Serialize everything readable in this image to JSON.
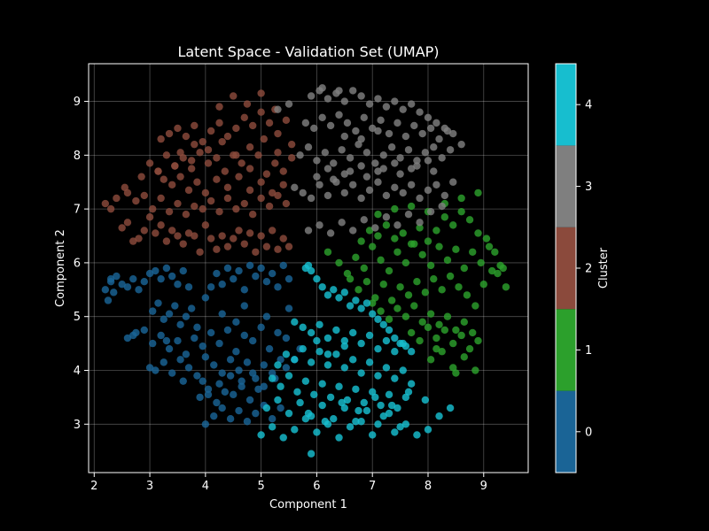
{
  "chart_data": {
    "type": "scatter",
    "title": "Latent Space - Validation Set (UMAP)",
    "xlabel": "Component 1",
    "ylabel": "Component 2",
    "xlim": [
      1.9,
      9.8
    ],
    "ylim": [
      2.1,
      9.7
    ],
    "xticks": [
      2,
      3,
      4,
      5,
      6,
      7,
      8,
      9
    ],
    "yticks": [
      3,
      4,
      5,
      6,
      7,
      8,
      9
    ],
    "grid": true,
    "background": "#000000",
    "colorbar": {
      "label": "Cluster",
      "range": [
        -0.5,
        4.5
      ],
      "ticks": [
        0,
        1,
        2,
        3,
        4
      ]
    },
    "series": [
      {
        "cluster": 0,
        "color": "#1a6496",
        "x": [
          2.2,
          2.25,
          2.3,
          2.35,
          2.3,
          2.4,
          2.5,
          2.6,
          2.7,
          2.8,
          2.9,
          3.0,
          3.1,
          3.2,
          3.3,
          3.4,
          3.5,
          3.6,
          3.7,
          3.05,
          3.15,
          3.25,
          3.35,
          3.45,
          3.55,
          3.65,
          3.75,
          3.85,
          4.0,
          4.1,
          4.2,
          4.3,
          4.4,
          4.5,
          4.6,
          4.7,
          4.8,
          4.9,
          5.0,
          5.1,
          5.2,
          5.3,
          5.4,
          5.5,
          2.6,
          2.75,
          2.9,
          3.05,
          3.2,
          3.35,
          3.5,
          3.65,
          3.8,
          3.95,
          4.1,
          4.25,
          4.4,
          4.55,
          4.7,
          4.85,
          5.0,
          5.15,
          5.3,
          5.45,
          3.1,
          3.25,
          3.4,
          3.55,
          3.7,
          3.85,
          4.0,
          4.15,
          4.3,
          4.45,
          4.6,
          4.75,
          4.9,
          5.05,
          5.2,
          5.35,
          3.9,
          4.05,
          4.2,
          4.35,
          4.5,
          4.65,
          4.8,
          4.95,
          4.0,
          4.15,
          4.3,
          4.45,
          4.6,
          4.75,
          4.9,
          5.05,
          5.2,
          5.35,
          4.05,
          4.25,
          4.45,
          4.65,
          4.85,
          5.05,
          5.25,
          5.45,
          5.6,
          5.7,
          3.95,
          4.3,
          4.7,
          5.1,
          5.5,
          3.6,
          3.0,
          2.7,
          3.3,
          4.55
        ],
        "y": [
          5.5,
          5.3,
          5.7,
          5.45,
          5.65,
          5.75,
          5.6,
          5.55,
          5.7,
          5.5,
          5.65,
          5.8,
          5.85,
          5.7,
          5.9,
          5.75,
          5.6,
          5.85,
          5.55,
          5.1,
          5.25,
          4.95,
          5.05,
          5.2,
          4.85,
          5.0,
          5.15,
          4.8,
          5.35,
          5.55,
          5.8,
          5.6,
          5.9,
          5.7,
          5.85,
          5.5,
          5.95,
          5.75,
          5.9,
          5.65,
          5.8,
          5.55,
          5.95,
          5.7,
          4.6,
          4.7,
          4.75,
          4.5,
          4.65,
          4.4,
          4.55,
          4.3,
          4.6,
          4.45,
          4.7,
          4.5,
          4.75,
          4.35,
          4.65,
          4.55,
          4.8,
          4.4,
          4.7,
          4.6,
          4.0,
          4.15,
          3.95,
          4.2,
          4.05,
          3.9,
          4.25,
          4.1,
          3.95,
          4.2,
          4.0,
          4.15,
          3.85,
          4.1,
          3.95,
          4.2,
          3.5,
          3.65,
          3.4,
          3.6,
          3.55,
          3.7,
          3.45,
          3.65,
          3.0,
          3.15,
          3.3,
          3.1,
          3.25,
          3.05,
          3.2,
          3.35,
          3.1,
          3.3,
          3.55,
          3.75,
          3.9,
          3.8,
          3.95,
          3.7,
          3.85,
          4.05,
          4.2,
          4.4,
          3.8,
          5.05,
          5.2,
          5.0,
          5.15,
          3.8,
          4.05,
          4.65,
          4.55,
          4.9
        ]
      },
      {
        "cluster": 1,
        "color": "#2ca02c",
        "x": [
          6.2,
          6.4,
          6.55,
          6.7,
          6.85,
          7.0,
          7.15,
          7.3,
          7.45,
          7.6,
          7.75,
          7.9,
          8.05,
          8.2,
          8.35,
          8.5,
          8.65,
          8.8,
          8.95,
          9.1,
          9.25,
          9.4,
          6.6,
          6.75,
          6.9,
          7.05,
          7.2,
          7.35,
          7.5,
          7.65,
          7.8,
          7.95,
          8.1,
          8.25,
          8.4,
          8.55,
          8.7,
          8.85,
          9.0,
          9.15,
          9.3,
          6.8,
          6.95,
          7.1,
          7.25,
          7.4,
          7.55,
          7.7,
          7.85,
          8.0,
          8.15,
          8.3,
          8.45,
          8.6,
          8.75,
          8.9,
          7.0,
          7.15,
          7.3,
          7.45,
          7.6,
          7.75,
          7.9,
          8.05,
          8.2,
          8.35,
          8.5,
          8.65,
          8.8,
          7.7,
          7.85,
          8.0,
          8.15,
          8.3,
          8.45,
          8.6,
          8.75,
          8.9,
          8.05,
          8.25,
          8.45,
          8.65,
          8.85,
          7.1,
          7.4,
          7.7,
          8.0,
          8.3,
          8.6,
          8.9,
          9.05,
          9.2,
          9.35,
          8.15,
          8.5
        ],
        "y": [
          6.2,
          6.0,
          5.8,
          6.1,
          5.9,
          6.3,
          6.05,
          5.85,
          6.2,
          6.0,
          6.35,
          6.15,
          5.95,
          6.3,
          6.05,
          6.25,
          5.9,
          6.2,
          6.0,
          6.3,
          5.8,
          5.55,
          5.7,
          5.5,
          5.65,
          5.35,
          5.6,
          5.3,
          5.55,
          5.4,
          5.65,
          5.45,
          5.7,
          5.5,
          5.75,
          5.55,
          5.4,
          5.2,
          5.6,
          5.85,
          5.95,
          6.4,
          6.6,
          6.5,
          6.7,
          6.45,
          6.55,
          6.35,
          6.65,
          6.4,
          6.6,
          6.85,
          6.7,
          6.95,
          6.8,
          6.55,
          5.25,
          5.1,
          4.95,
          5.15,
          5.0,
          5.2,
          4.9,
          5.05,
          4.85,
          5.0,
          4.75,
          4.9,
          4.7,
          4.7,
          4.55,
          4.8,
          4.6,
          4.75,
          4.5,
          4.65,
          4.4,
          4.55,
          4.2,
          4.35,
          4.05,
          4.25,
          4.0,
          6.9,
          7.0,
          7.05,
          6.95,
          7.1,
          7.2,
          7.3,
          6.45,
          6.2,
          5.9,
          4.4,
          3.95
        ]
      },
      {
        "cluster": 2,
        "color": "#8b4a3c",
        "x": [
          2.2,
          2.3,
          2.4,
          2.5,
          2.6,
          2.7,
          2.8,
          2.9,
          3.0,
          3.1,
          3.2,
          3.3,
          3.4,
          3.5,
          3.6,
          3.7,
          3.8,
          3.9,
          4.0,
          4.1,
          4.2,
          4.3,
          4.4,
          4.5,
          4.6,
          4.7,
          4.8,
          4.9,
          5.0,
          5.1,
          5.2,
          5.3,
          5.4,
          5.5,
          2.6,
          2.75,
          2.9,
          3.05,
          3.2,
          3.35,
          3.5,
          3.65,
          3.8,
          3.95,
          4.1,
          4.25,
          4.4,
          4.55,
          4.7,
          4.85,
          5.0,
          5.15,
          5.3,
          5.45,
          3.0,
          3.15,
          3.3,
          3.45,
          3.6,
          3.75,
          3.9,
          4.05,
          4.2,
          4.35,
          4.5,
          4.65,
          4.8,
          4.95,
          5.1,
          5.25,
          5.4,
          5.55,
          3.2,
          3.35,
          3.5,
          3.65,
          3.8,
          3.95,
          4.1,
          4.25,
          4.4,
          4.55,
          4.7,
          4.85,
          5.0,
          5.15,
          5.3,
          5.45,
          3.25,
          3.4,
          3.55,
          3.7,
          3.85,
          4.0,
          4.2,
          4.4,
          4.6,
          4.8,
          5.0,
          5.2,
          5.4,
          4.25,
          4.5,
          4.75,
          5.0,
          5.25,
          3.55,
          3.8,
          4.05,
          4.3,
          4.55,
          4.8,
          5.05,
          5.3,
          5.55,
          2.55,
          2.85,
          3.15,
          3.45,
          3.75
        ],
        "y": [
          7.1,
          7.0,
          7.2,
          6.65,
          6.75,
          6.4,
          6.45,
          6.6,
          6.85,
          6.55,
          6.7,
          6.4,
          6.6,
          6.5,
          6.35,
          6.55,
          6.5,
          6.2,
          6.7,
          6.45,
          6.25,
          6.5,
          6.3,
          6.45,
          6.6,
          6.35,
          6.55,
          6.2,
          6.5,
          6.3,
          6.6,
          6.25,
          6.45,
          6.3,
          7.3,
          7.15,
          7.25,
          7.0,
          7.2,
          6.95,
          7.1,
          6.9,
          7.05,
          7.0,
          7.15,
          6.95,
          7.2,
          7.0,
          7.1,
          6.9,
          7.2,
          7.05,
          7.25,
          7.1,
          7.85,
          7.7,
          8.0,
          7.8,
          7.95,
          7.75,
          8.05,
          7.85,
          7.95,
          7.7,
          8.0,
          7.85,
          7.75,
          8.0,
          7.65,
          7.85,
          7.7,
          7.95,
          8.3,
          8.4,
          8.5,
          8.35,
          8.55,
          8.25,
          8.45,
          8.6,
          8.35,
          8.5,
          8.7,
          8.55,
          8.8,
          8.6,
          8.4,
          8.65,
          7.55,
          7.45,
          7.6,
          7.35,
          7.5,
          7.3,
          7.55,
          7.4,
          7.6,
          7.35,
          7.5,
          7.3,
          7.45,
          8.9,
          9.1,
          8.95,
          9.15,
          8.85,
          8.05,
          8.2,
          8.1,
          8.25,
          8.0,
          8.15,
          8.3,
          8.05,
          8.2,
          7.4,
          7.6,
          7.7,
          7.8,
          7.9
        ]
      },
      {
        "cluster": 3,
        "color": "#7f7f7f",
        "x": [
          5.6,
          5.75,
          5.9,
          6.05,
          6.2,
          6.35,
          6.5,
          6.65,
          6.8,
          6.95,
          7.1,
          7.25,
          7.4,
          7.55,
          7.7,
          7.85,
          8.0,
          8.15,
          8.3,
          8.45,
          5.7,
          5.85,
          6.0,
          6.15,
          6.3,
          6.45,
          6.6,
          6.75,
          6.9,
          7.05,
          7.2,
          7.35,
          7.5,
          7.65,
          7.8,
          7.95,
          8.1,
          8.25,
          8.4,
          5.8,
          5.95,
          6.1,
          6.25,
          6.4,
          6.55,
          6.7,
          6.85,
          7.0,
          7.15,
          7.3,
          7.45,
          7.6,
          7.75,
          7.9,
          8.05,
          8.2,
          8.35,
          5.9,
          6.05,
          6.2,
          6.35,
          6.5,
          6.65,
          6.8,
          6.95,
          7.1,
          7.25,
          7.4,
          7.55,
          7.7,
          7.85,
          8.0,
          8.15,
          8.3,
          8.45,
          8.6,
          5.85,
          6.05,
          6.25,
          6.45,
          6.65,
          6.85,
          7.05,
          7.25,
          7.45,
          7.65,
          7.85,
          8.05,
          8.25,
          6.0,
          6.3,
          6.6,
          6.9,
          7.2,
          7.5,
          7.8,
          8.1,
          6.2,
          6.5,
          6.8,
          7.1,
          7.4,
          7.7,
          8.0,
          6.5,
          6.8,
          7.1,
          5.3,
          5.5,
          6.1,
          6.4
        ],
        "y": [
          7.4,
          7.3,
          7.2,
          7.45,
          7.25,
          7.5,
          7.3,
          7.45,
          7.2,
          7.35,
          7.5,
          7.25,
          7.4,
          7.3,
          7.45,
          7.2,
          7.35,
          7.45,
          7.25,
          7.5,
          8.0,
          8.15,
          7.9,
          8.05,
          7.85,
          8.1,
          7.95,
          8.2,
          8.05,
          7.85,
          8.0,
          8.15,
          7.95,
          8.1,
          7.9,
          8.05,
          8.15,
          7.95,
          8.1,
          8.6,
          8.5,
          8.7,
          8.55,
          8.75,
          8.6,
          8.45,
          8.7,
          8.5,
          8.65,
          8.4,
          8.6,
          8.35,
          8.55,
          8.4,
          8.5,
          8.3,
          8.45,
          9.1,
          9.2,
          9.05,
          9.15,
          9.0,
          9.2,
          9.1,
          8.95,
          9.05,
          8.9,
          9.0,
          8.85,
          8.95,
          8.8,
          8.7,
          8.6,
          8.5,
          8.4,
          8.2,
          6.6,
          6.7,
          6.55,
          6.75,
          6.6,
          6.8,
          6.65,
          6.85,
          6.7,
          6.9,
          6.75,
          6.95,
          7.05,
          7.6,
          7.55,
          7.7,
          7.6,
          7.75,
          7.65,
          7.8,
          7.7,
          7.75,
          7.65,
          7.8,
          7.7,
          7.85,
          7.75,
          7.9,
          8.35,
          8.3,
          8.45,
          8.85,
          8.95,
          9.25,
          9.2
        ]
      },
      {
        "cluster": 4,
        "color": "#17becf",
        "x": [
          5.8,
          5.9,
          6.0,
          6.1,
          6.2,
          6.3,
          6.4,
          6.5,
          6.6,
          6.7,
          6.8,
          6.9,
          7.0,
          7.1,
          7.2,
          7.3,
          7.4,
          7.5,
          7.6,
          7.7,
          5.6,
          5.75,
          5.9,
          6.05,
          6.2,
          6.35,
          6.5,
          6.65,
          6.8,
          6.95,
          7.1,
          7.25,
          7.4,
          7.55,
          5.3,
          5.45,
          5.6,
          5.75,
          5.9,
          6.05,
          6.2,
          6.35,
          6.5,
          6.65,
          6.8,
          6.95,
          7.1,
          7.25,
          7.4,
          7.55,
          7.7,
          5.2,
          5.35,
          5.5,
          5.65,
          5.8,
          5.95,
          6.1,
          6.25,
          6.4,
          6.55,
          6.7,
          6.85,
          7.0,
          7.15,
          7.3,
          7.45,
          7.6,
          5.1,
          5.3,
          5.5,
          5.7,
          5.9,
          6.1,
          6.3,
          6.5,
          6.7,
          6.9,
          7.1,
          7.3,
          7.5,
          5.0,
          5.2,
          5.4,
          5.6,
          5.8,
          6.0,
          6.2,
          6.4,
          6.6,
          6.8,
          7.0,
          7.2,
          7.4,
          7.6,
          7.8,
          8.0,
          8.2,
          8.4,
          5.85,
          6.15,
          6.45,
          6.75,
          7.05,
          7.35,
          7.65,
          7.95,
          5.85,
          6.0,
          6.2,
          6.5,
          5.9
        ],
        "y": [
          5.9,
          5.85,
          5.7,
          5.55,
          5.4,
          5.5,
          5.35,
          5.45,
          5.2,
          5.3,
          5.15,
          5.25,
          5.05,
          4.95,
          4.85,
          4.75,
          4.6,
          4.5,
          4.45,
          4.35,
          4.9,
          4.8,
          4.7,
          4.85,
          4.6,
          4.75,
          4.55,
          4.7,
          4.5,
          4.65,
          4.4,
          4.55,
          4.35,
          4.5,
          4.1,
          4.3,
          4.2,
          4.4,
          4.15,
          4.35,
          4.1,
          4.3,
          4.05,
          4.2,
          3.95,
          4.15,
          3.9,
          4.05,
          3.85,
          4.0,
          3.75,
          3.85,
          3.7,
          3.9,
          3.6,
          3.8,
          3.55,
          3.75,
          3.5,
          3.7,
          3.45,
          3.65,
          3.4,
          3.6,
          3.35,
          3.55,
          3.3,
          3.5,
          3.3,
          3.45,
          3.2,
          3.4,
          3.15,
          3.35,
          3.1,
          3.3,
          3.05,
          3.25,
          3.0,
          3.2,
          2.95,
          2.8,
          2.95,
          2.75,
          2.9,
          3.1,
          2.85,
          3.0,
          2.75,
          2.95,
          3.05,
          2.8,
          3.15,
          2.85,
          3.0,
          2.8,
          2.9,
          3.15,
          3.3,
          3.2,
          3.05,
          3.4,
          3.25,
          3.5,
          3.35,
          3.6,
          3.45,
          5.95,
          4.55,
          4.3,
          4.45,
          2.45
        ]
      }
    ]
  }
}
